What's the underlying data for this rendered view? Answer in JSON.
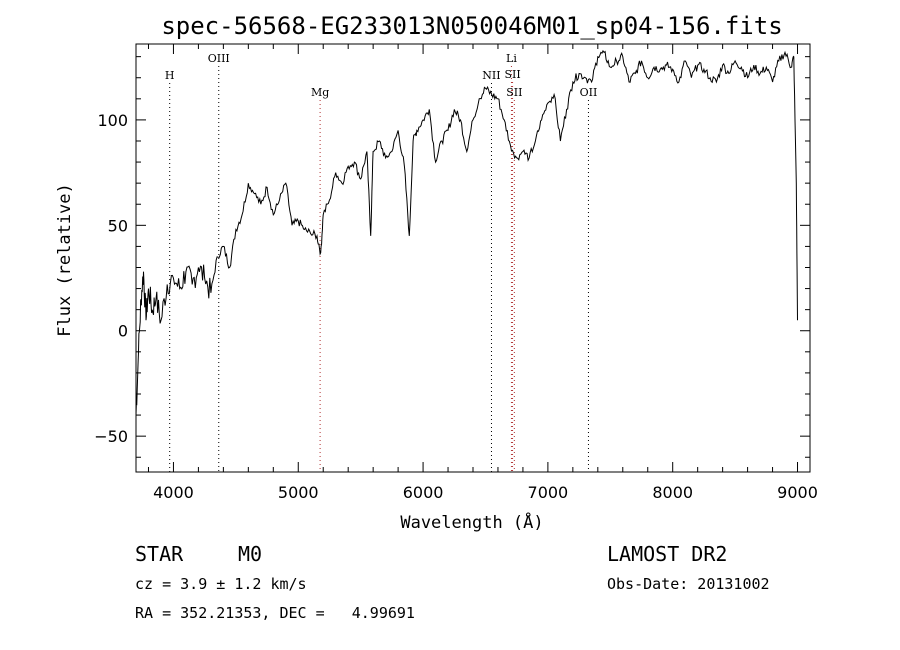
{
  "chart_data": {
    "type": "line",
    "title": "spec-56568-EG233013N050046M01_sp04-156.fits",
    "xlabel": "Wavelength (Å)",
    "ylabel": "Flux (relative)",
    "xlim": [
      3700,
      9100
    ],
    "ylim": [
      -67,
      136
    ],
    "xticks": [
      4000,
      5000,
      6000,
      7000,
      8000,
      9000
    ],
    "yticks": [
      -50,
      0,
      50,
      100
    ],
    "grid": false,
    "series": [
      {
        "color": "#000000",
        "x": [
          3700,
          3720,
          3740,
          3760,
          3780,
          3800,
          3830,
          3860,
          3900,
          3950,
          4000,
          4050,
          4100,
          4150,
          4200,
          4250,
          4300,
          4350,
          4400,
          4450,
          4500,
          4550,
          4600,
          4650,
          4700,
          4750,
          4800,
          4850,
          4900,
          4950,
          5000,
          5050,
          5100,
          5150,
          5180,
          5200,
          5250,
          5300,
          5350,
          5400,
          5450,
          5500,
          5550,
          5580,
          5600,
          5650,
          5700,
          5750,
          5800,
          5850,
          5890,
          5920,
          5950,
          6000,
          6050,
          6100,
          6150,
          6200,
          6250,
          6300,
          6350,
          6400,
          6450,
          6500,
          6550,
          6600,
          6650,
          6700,
          6750,
          6800,
          6850,
          6900,
          6950,
          7000,
          7050,
          7100,
          7150,
          7200,
          7250,
          7300,
          7350,
          7400,
          7450,
          7500,
          7550,
          7600,
          7650,
          7700,
          7750,
          7800,
          7850,
          7900,
          7950,
          8000,
          8050,
          8100,
          8150,
          8200,
          8250,
          8300,
          8350,
          8400,
          8450,
          8500,
          8550,
          8600,
          8650,
          8700,
          8750,
          8800,
          8850,
          8900,
          8950,
          8970,
          8990,
          9000
        ],
        "y": [
          -40,
          -10,
          15,
          28,
          5,
          20,
          10,
          15,
          5,
          22,
          25,
          20,
          28,
          22,
          30,
          25,
          18,
          35,
          40,
          30,
          48,
          55,
          70,
          65,
          60,
          68,
          55,
          62,
          70,
          50,
          52,
          48,
          46,
          45,
          37,
          55,
          62,
          75,
          70,
          78,
          80,
          72,
          85,
          45,
          85,
          90,
          82,
          85,
          95,
          78,
          45,
          90,
          95,
          100,
          105,
          80,
          90,
          95,
          105,
          100,
          85,
          100,
          110,
          115,
          112,
          110,
          100,
          88,
          82,
          85,
          82,
          90,
          100,
          108,
          112,
          90,
          105,
          118,
          122,
          120,
          118,
          130,
          132,
          125,
          128,
          130,
          118,
          122,
          128,
          120,
          125,
          124,
          126,
          124,
          118,
          128,
          120,
          126,
          124,
          120,
          118,
          126,
          122,
          128,
          125,
          120,
          126,
          122,
          125,
          118,
          128,
          132,
          125,
          130,
          70,
          5
        ]
      }
    ],
    "annotations": [
      {
        "label": "H",
        "x": 3970,
        "color": "#000000",
        "tier": 3
      },
      {
        "label": "OIII",
        "x": 4363,
        "color": "#000000",
        "tier": 1
      },
      {
        "label": "Mg",
        "x": 5175,
        "color": "#b03030",
        "tier": 4
      },
      {
        "label": "NII",
        "x": 6548,
        "color": "#000000",
        "tier": 3
      },
      {
        "label": "Li",
        "x": 6708,
        "color": "#b03030",
        "tier": 1
      },
      {
        "label": "SII",
        "x": 6717,
        "color": "#b03030",
        "tier": 2
      },
      {
        "label": "SII",
        "x": 6731,
        "color": "#b03030",
        "tier": 4
      },
      {
        "label": "OII",
        "x": 7325,
        "color": "#000000",
        "tier": 4
      }
    ]
  },
  "info": {
    "object_class": "STAR",
    "subclass": "M0",
    "survey": "LAMOST DR2",
    "cz": "cz = 3.9 ± 1.2 km/s",
    "obs_date": "Obs-Date: 20131002",
    "coords": "RA = 352.21353, DEC =   4.99691"
  }
}
